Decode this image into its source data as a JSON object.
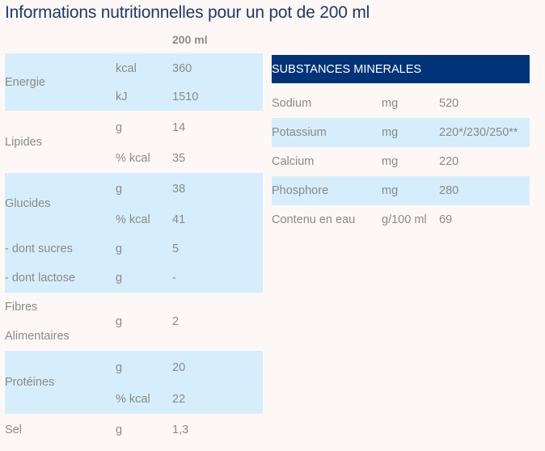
{
  "title": "Informations nutritionnelles pour un pot de 200 ml",
  "column_header": "200 ml",
  "left_table": [
    {
      "label": [
        "Energie"
      ],
      "blue": true,
      "rows": [
        {
          "unit": "kcal",
          "value": "360"
        },
        {
          "unit": "kJ",
          "value": "1510"
        }
      ]
    },
    {
      "label": [
        "Lipides"
      ],
      "blue": false,
      "rows": [
        {
          "unit": "g",
          "value": "14"
        },
        {
          "unit": "% kcal",
          "value": "35"
        }
      ]
    },
    {
      "label": [
        "Glucides"
      ],
      "blue": true,
      "rows": [
        {
          "unit": "g",
          "value": "38"
        },
        {
          "unit": "% kcal",
          "value": "41"
        }
      ]
    },
    {
      "label": [
        "- dont sucres"
      ],
      "blue": true,
      "rows": [
        {
          "unit": "g",
          "value": "5"
        }
      ]
    },
    {
      "label": [
        "- dont lactose"
      ],
      "blue": true,
      "rows": [
        {
          "unit": "g",
          "value": "-"
        }
      ]
    },
    {
      "label": [
        "Fibres",
        "Alimentaires"
      ],
      "blue": false,
      "rows": [
        {
          "unit": "g",
          "value": "2"
        }
      ]
    },
    {
      "label": [
        "Protéines"
      ],
      "blue": true,
      "rows": [
        {
          "unit": "g",
          "value": "20"
        },
        {
          "unit": "% kcal",
          "value": "22"
        }
      ]
    },
    {
      "label": [
        "Sel"
      ],
      "blue": false,
      "rows": [
        {
          "unit": "g",
          "value": "1,3"
        }
      ]
    }
  ],
  "minerals": {
    "header": "SUBSTANCES MINERALES",
    "rows": [
      {
        "label": "Sodium",
        "unit": "mg",
        "value": "520",
        "blue": false
      },
      {
        "label": "Potassium",
        "unit": "mg",
        "value": "220*/230/250**",
        "blue": true
      },
      {
        "label": "Calcium",
        "unit": "mg",
        "value": "220",
        "blue": false
      },
      {
        "label": "Phosphore",
        "unit": "mg",
        "value": "280",
        "blue": true
      },
      {
        "label": "Contenu en eau",
        "unit": "g/100 ml",
        "value": "69",
        "blue": false
      }
    ]
  }
}
